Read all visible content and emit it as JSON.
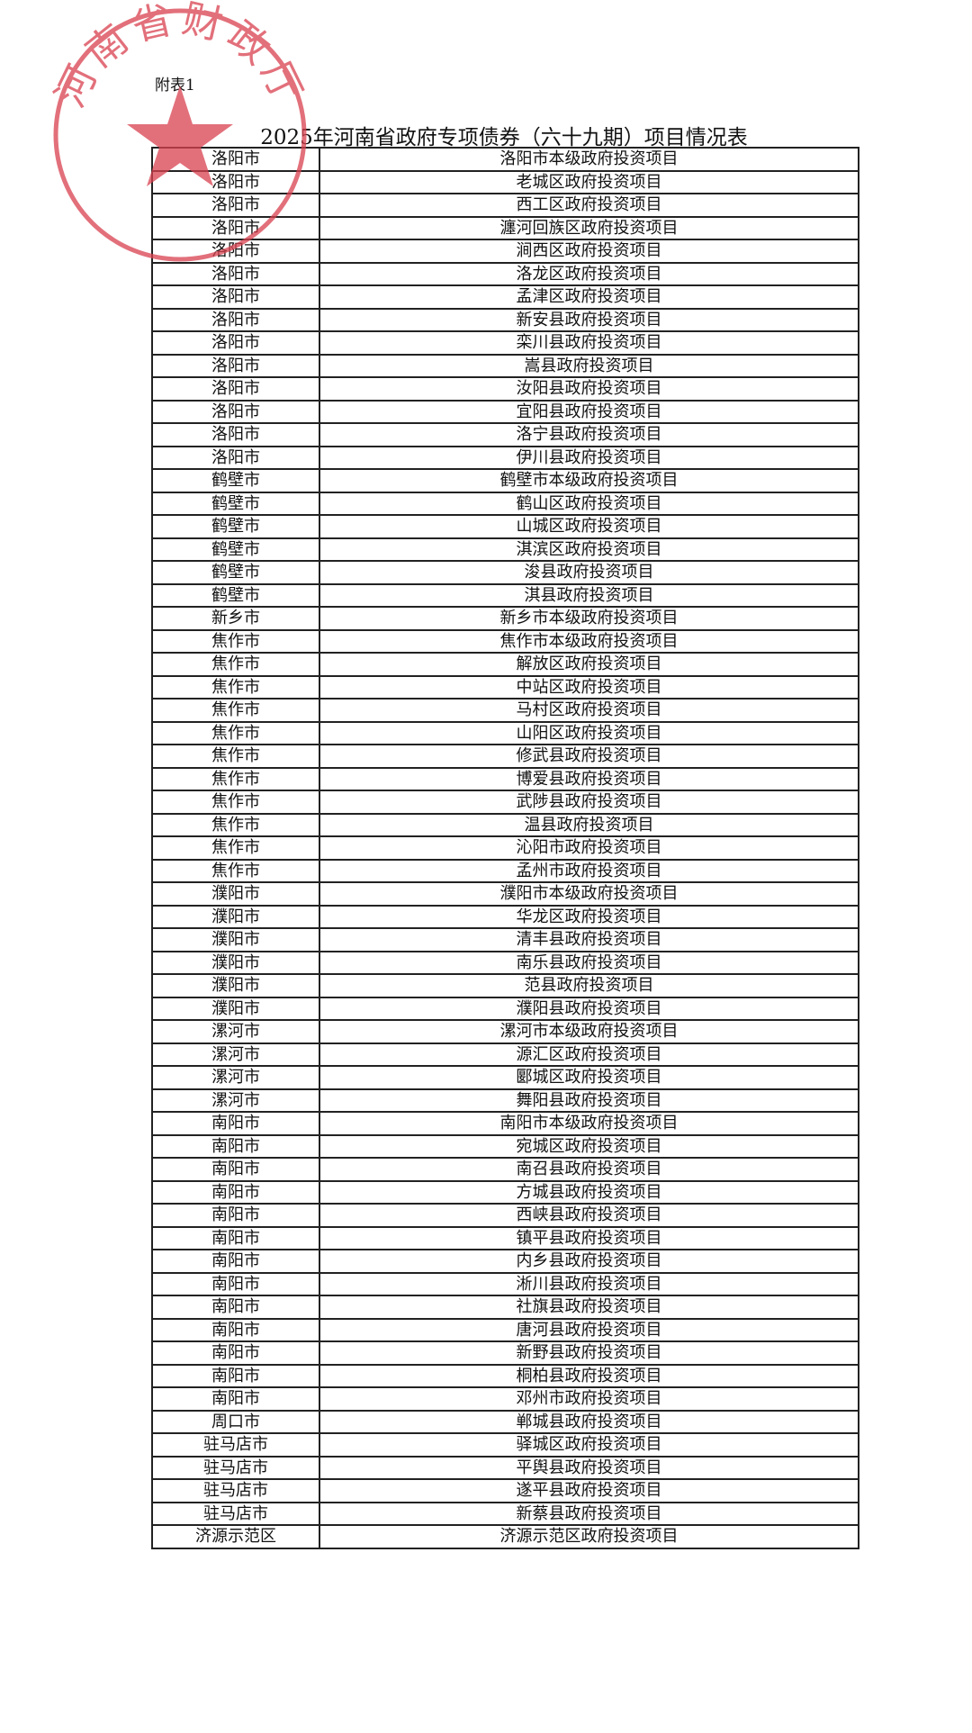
{
  "annex_label": "附表1",
  "title": "2025年河南省政府专项债券（六十九期）项目情况表",
  "stamp": {
    "text": "河南省财政厅",
    "color": "#d9414f"
  },
  "rows": [
    [
      "洛阳市",
      "洛阳市本级政府投资项目"
    ],
    [
      "洛阳市",
      "老城区政府投资项目"
    ],
    [
      "洛阳市",
      "西工区政府投资项目"
    ],
    [
      "洛阳市",
      "瀍河回族区政府投资项目"
    ],
    [
      "洛阳市",
      "涧西区政府投资项目"
    ],
    [
      "洛阳市",
      "洛龙区政府投资项目"
    ],
    [
      "洛阳市",
      "孟津区政府投资项目"
    ],
    [
      "洛阳市",
      "新安县政府投资项目"
    ],
    [
      "洛阳市",
      "栾川县政府投资项目"
    ],
    [
      "洛阳市",
      "嵩县政府投资项目"
    ],
    [
      "洛阳市",
      "汝阳县政府投资项目"
    ],
    [
      "洛阳市",
      "宜阳县政府投资项目"
    ],
    [
      "洛阳市",
      "洛宁县政府投资项目"
    ],
    [
      "洛阳市",
      "伊川县政府投资项目"
    ],
    [
      "鹤壁市",
      "鹤壁市本级政府投资项目"
    ],
    [
      "鹤壁市",
      "鹤山区政府投资项目"
    ],
    [
      "鹤壁市",
      "山城区政府投资项目"
    ],
    [
      "鹤壁市",
      "淇滨区政府投资项目"
    ],
    [
      "鹤壁市",
      "浚县政府投资项目"
    ],
    [
      "鹤壁市",
      "淇县政府投资项目"
    ],
    [
      "新乡市",
      "新乡市本级政府投资项目"
    ],
    [
      "焦作市",
      "焦作市本级政府投资项目"
    ],
    [
      "焦作市",
      "解放区政府投资项目"
    ],
    [
      "焦作市",
      "中站区政府投资项目"
    ],
    [
      "焦作市",
      "马村区政府投资项目"
    ],
    [
      "焦作市",
      "山阳区政府投资项目"
    ],
    [
      "焦作市",
      "修武县政府投资项目"
    ],
    [
      "焦作市",
      "博爱县政府投资项目"
    ],
    [
      "焦作市",
      "武陟县政府投资项目"
    ],
    [
      "焦作市",
      "温县政府投资项目"
    ],
    [
      "焦作市",
      "沁阳市政府投资项目"
    ],
    [
      "焦作市",
      "孟州市政府投资项目"
    ],
    [
      "濮阳市",
      "濮阳市本级政府投资项目"
    ],
    [
      "濮阳市",
      "华龙区政府投资项目"
    ],
    [
      "濮阳市",
      "清丰县政府投资项目"
    ],
    [
      "濮阳市",
      "南乐县政府投资项目"
    ],
    [
      "濮阳市",
      "范县政府投资项目"
    ],
    [
      "濮阳市",
      "濮阳县政府投资项目"
    ],
    [
      "漯河市",
      "漯河市本级政府投资项目"
    ],
    [
      "漯河市",
      "源汇区政府投资项目"
    ],
    [
      "漯河市",
      "郾城区政府投资项目"
    ],
    [
      "漯河市",
      "舞阳县政府投资项目"
    ],
    [
      "南阳市",
      "南阳市本级政府投资项目"
    ],
    [
      "南阳市",
      "宛城区政府投资项目"
    ],
    [
      "南阳市",
      "南召县政府投资项目"
    ],
    [
      "南阳市",
      "方城县政府投资项目"
    ],
    [
      "南阳市",
      "西峡县政府投资项目"
    ],
    [
      "南阳市",
      "镇平县政府投资项目"
    ],
    [
      "南阳市",
      "内乡县政府投资项目"
    ],
    [
      "南阳市",
      "淅川县政府投资项目"
    ],
    [
      "南阳市",
      "社旗县政府投资项目"
    ],
    [
      "南阳市",
      "唐河县政府投资项目"
    ],
    [
      "南阳市",
      "新野县政府投资项目"
    ],
    [
      "南阳市",
      "桐柏县政府投资项目"
    ],
    [
      "南阳市",
      "邓州市政府投资项目"
    ],
    [
      "周口市",
      "郸城县政府投资项目"
    ],
    [
      "驻马店市",
      "驿城区政府投资项目"
    ],
    [
      "驻马店市",
      "平舆县政府投资项目"
    ],
    [
      "驻马店市",
      "遂平县政府投资项目"
    ],
    [
      "驻马店市",
      "新蔡县政府投资项目"
    ],
    [
      "济源示范区",
      "济源示范区政府投资项目"
    ]
  ]
}
